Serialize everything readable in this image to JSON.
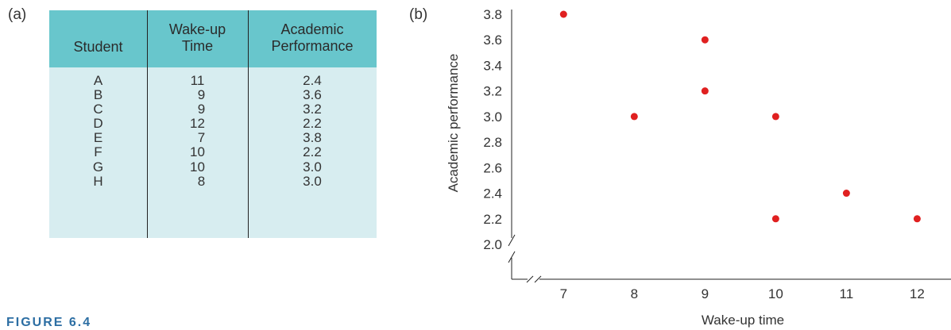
{
  "panels": {
    "a": "(a)",
    "b": "(b)"
  },
  "table": {
    "headers": {
      "student": "Student",
      "wake_line1": "Wake-up",
      "wake_line2": "Time",
      "perf_line1": "Academic",
      "perf_line2": "Performance"
    },
    "rows": [
      {
        "student": "A",
        "wake": "11",
        "perf": "2.4"
      },
      {
        "student": "B",
        "wake": "9",
        "perf": "3.6"
      },
      {
        "student": "C",
        "wake": "9",
        "perf": "3.2"
      },
      {
        "student": "D",
        "wake": "12",
        "perf": "2.2"
      },
      {
        "student": "E",
        "wake": "7",
        "perf": "3.8"
      },
      {
        "student": "F",
        "wake": "10",
        "perf": "2.2"
      },
      {
        "student": "G",
        "wake": "10",
        "perf": "3.0"
      },
      {
        "student": "H",
        "wake": "8",
        "perf": "3.0"
      }
    ]
  },
  "figure_caption": "FIGURE 6.4",
  "chart_data": {
    "type": "scatter",
    "xlabel": "Wake-up time",
    "ylabel": "Academic performance",
    "xticks": [
      7,
      8,
      9,
      10,
      11,
      12
    ],
    "yticks": [
      "2.0",
      "2.2",
      "2.4",
      "2.6",
      "2.8",
      "3.0",
      "3.2",
      "3.4",
      "3.6",
      "3.8"
    ],
    "xlim": [
      6.3,
      12.4
    ],
    "ylim": [
      2.0,
      3.8
    ],
    "axis_breaks": true,
    "grid": false,
    "point_color": "#e02020",
    "points": [
      {
        "x": 11,
        "y": 2.4
      },
      {
        "x": 9,
        "y": 3.6
      },
      {
        "x": 9,
        "y": 3.2
      },
      {
        "x": 12,
        "y": 2.2
      },
      {
        "x": 7,
        "y": 3.8
      },
      {
        "x": 10,
        "y": 2.2
      },
      {
        "x": 10,
        "y": 3.0
      },
      {
        "x": 8,
        "y": 3.0
      }
    ]
  }
}
